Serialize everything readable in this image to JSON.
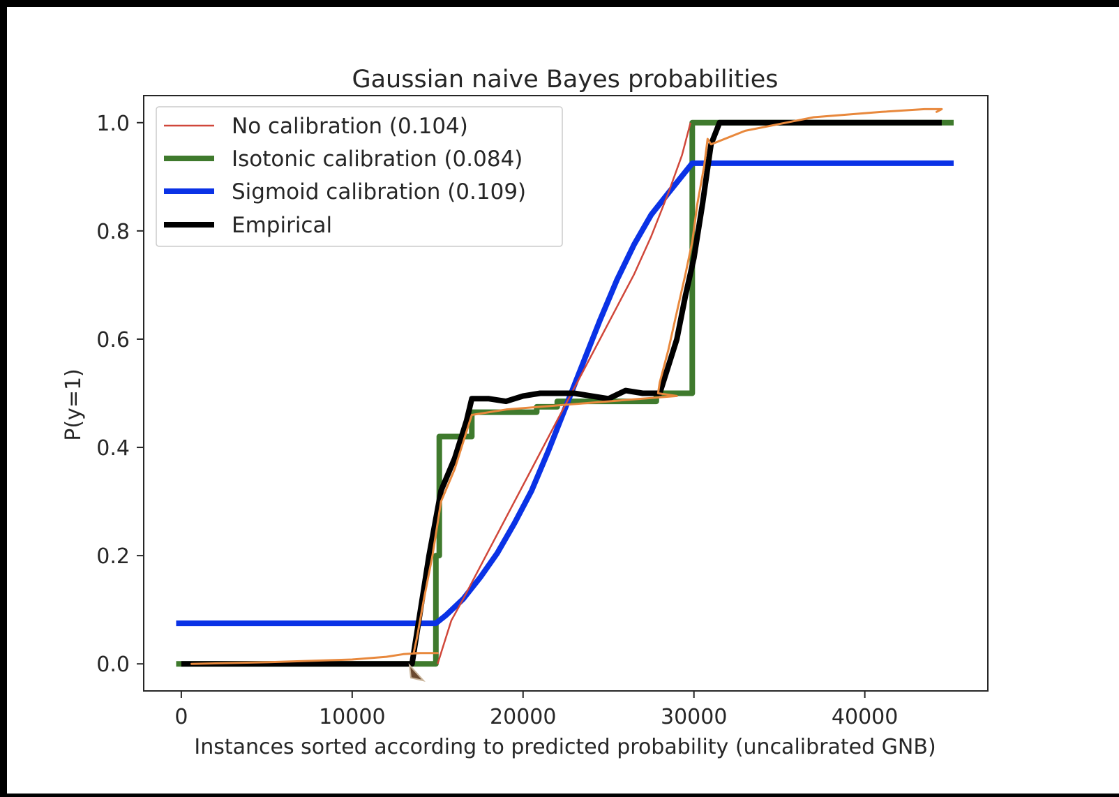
{
  "chart_data": {
    "type": "line",
    "title": "Gaussian naive Bayes probabilities",
    "xlabel": "Instances sorted according to predicted probability (uncalibrated GNB)",
    "ylabel": "P(y=1)",
    "xlim": [
      -2200,
      47200
    ],
    "ylim": [
      -0.05,
      1.05
    ],
    "xticks": [
      0,
      10000,
      20000,
      30000,
      40000
    ],
    "xtick_labels": [
      "0",
      "10000",
      "20000",
      "30000",
      "40000"
    ],
    "yticks": [
      0.0,
      0.2,
      0.4,
      0.6,
      0.8,
      1.0
    ],
    "ytick_labels": [
      "0.0",
      "0.2",
      "0.4",
      "0.6",
      "0.8",
      "1.0"
    ],
    "grid": false,
    "legend_position": "upper-left",
    "series": [
      {
        "name": "No calibration (0.104)",
        "color": "#d0473a",
        "points": [
          [
            15000,
            0.0
          ],
          [
            15300,
            0.03
          ],
          [
            15800,
            0.08
          ],
          [
            16500,
            0.12
          ],
          [
            17500,
            0.18
          ],
          [
            18500,
            0.24
          ],
          [
            19500,
            0.3
          ],
          [
            20500,
            0.36
          ],
          [
            21500,
            0.42
          ],
          [
            22500,
            0.48
          ],
          [
            23500,
            0.54
          ],
          [
            24500,
            0.6
          ],
          [
            25500,
            0.66
          ],
          [
            26500,
            0.72
          ],
          [
            27500,
            0.79
          ],
          [
            28500,
            0.87
          ],
          [
            29300,
            0.94
          ],
          [
            29800,
            1.0
          ]
        ]
      },
      {
        "name": "Isotonic calibration (0.084)",
        "color": "#3f7a2d",
        "points": [
          [
            -300,
            0.0
          ],
          [
            14900,
            0.0
          ],
          [
            14900,
            0.2
          ],
          [
            15100,
            0.2
          ],
          [
            15100,
            0.42
          ],
          [
            17000,
            0.42
          ],
          [
            17000,
            0.465
          ],
          [
            20800,
            0.465
          ],
          [
            20800,
            0.475
          ],
          [
            22000,
            0.475
          ],
          [
            22000,
            0.485
          ],
          [
            27800,
            0.485
          ],
          [
            27800,
            0.5
          ],
          [
            29900,
            0.5
          ],
          [
            29900,
            1.0
          ],
          [
            45200,
            1.0
          ]
        ]
      },
      {
        "name": "Sigmoid calibration (0.109)",
        "color": "#0a32e6",
        "points": [
          [
            -300,
            0.075
          ],
          [
            14900,
            0.075
          ],
          [
            15500,
            0.09
          ],
          [
            16500,
            0.12
          ],
          [
            17500,
            0.16
          ],
          [
            18500,
            0.205
          ],
          [
            19500,
            0.26
          ],
          [
            20500,
            0.32
          ],
          [
            21500,
            0.395
          ],
          [
            22500,
            0.475
          ],
          [
            23500,
            0.555
          ],
          [
            24500,
            0.635
          ],
          [
            25500,
            0.71
          ],
          [
            26500,
            0.775
          ],
          [
            27500,
            0.83
          ],
          [
            28500,
            0.87
          ],
          [
            29900,
            0.925
          ],
          [
            45200,
            0.925
          ]
        ]
      },
      {
        "name": "Empirical",
        "color": "#000000",
        "points": [
          [
            0,
            0.0
          ],
          [
            13500,
            0.0
          ],
          [
            14000,
            0.1
          ],
          [
            14500,
            0.2
          ],
          [
            15200,
            0.32
          ],
          [
            16000,
            0.38
          ],
          [
            16700,
            0.45
          ],
          [
            17000,
            0.49
          ],
          [
            18000,
            0.49
          ],
          [
            19000,
            0.485
          ],
          [
            20000,
            0.495
          ],
          [
            21000,
            0.5
          ],
          [
            22000,
            0.5
          ],
          [
            23000,
            0.5
          ],
          [
            24000,
            0.495
          ],
          [
            25000,
            0.49
          ],
          [
            26000,
            0.505
          ],
          [
            27000,
            0.5
          ],
          [
            28000,
            0.5
          ],
          [
            28500,
            0.55
          ],
          [
            29000,
            0.6
          ],
          [
            29500,
            0.68
          ],
          [
            30000,
            0.75
          ],
          [
            30500,
            0.85
          ],
          [
            31000,
            0.96
          ],
          [
            31500,
            1.0
          ],
          [
            44500,
            1.0
          ]
        ]
      }
    ]
  },
  "annotation": {
    "color": "#e8883c",
    "points": [
      [
        600,
        0.0
      ],
      [
        5000,
        0.003
      ],
      [
        10000,
        0.008
      ],
      [
        12000,
        0.013
      ],
      [
        13000,
        0.018
      ],
      [
        14000,
        0.02
      ],
      [
        15000,
        0.02
      ],
      [
        13600,
        0.02
      ],
      [
        13800,
        0.05
      ],
      [
        14200,
        0.12
      ],
      [
        14700,
        0.2
      ],
      [
        15200,
        0.3
      ],
      [
        15600,
        0.33
      ],
      [
        16000,
        0.36
      ],
      [
        16500,
        0.41
      ],
      [
        16800,
        0.44
      ],
      [
        17000,
        0.46
      ],
      [
        19000,
        0.47
      ],
      [
        21000,
        0.475
      ],
      [
        23000,
        0.48
      ],
      [
        25000,
        0.485
      ],
      [
        27000,
        0.49
      ],
      [
        29000,
        0.495
      ],
      [
        27900,
        0.5
      ],
      [
        28000,
        0.52
      ],
      [
        28500,
        0.58
      ],
      [
        29000,
        0.65
      ],
      [
        29500,
        0.72
      ],
      [
        29900,
        0.78
      ],
      [
        30200,
        0.85
      ],
      [
        30600,
        0.92
      ],
      [
        30800,
        0.97
      ],
      [
        31000,
        0.96
      ],
      [
        33000,
        0.985
      ],
      [
        37000,
        1.01
      ],
      [
        41000,
        1.02
      ],
      [
        43500,
        1.025
      ],
      [
        44500,
        1.025
      ],
      [
        44200,
        1.02
      ]
    ]
  }
}
